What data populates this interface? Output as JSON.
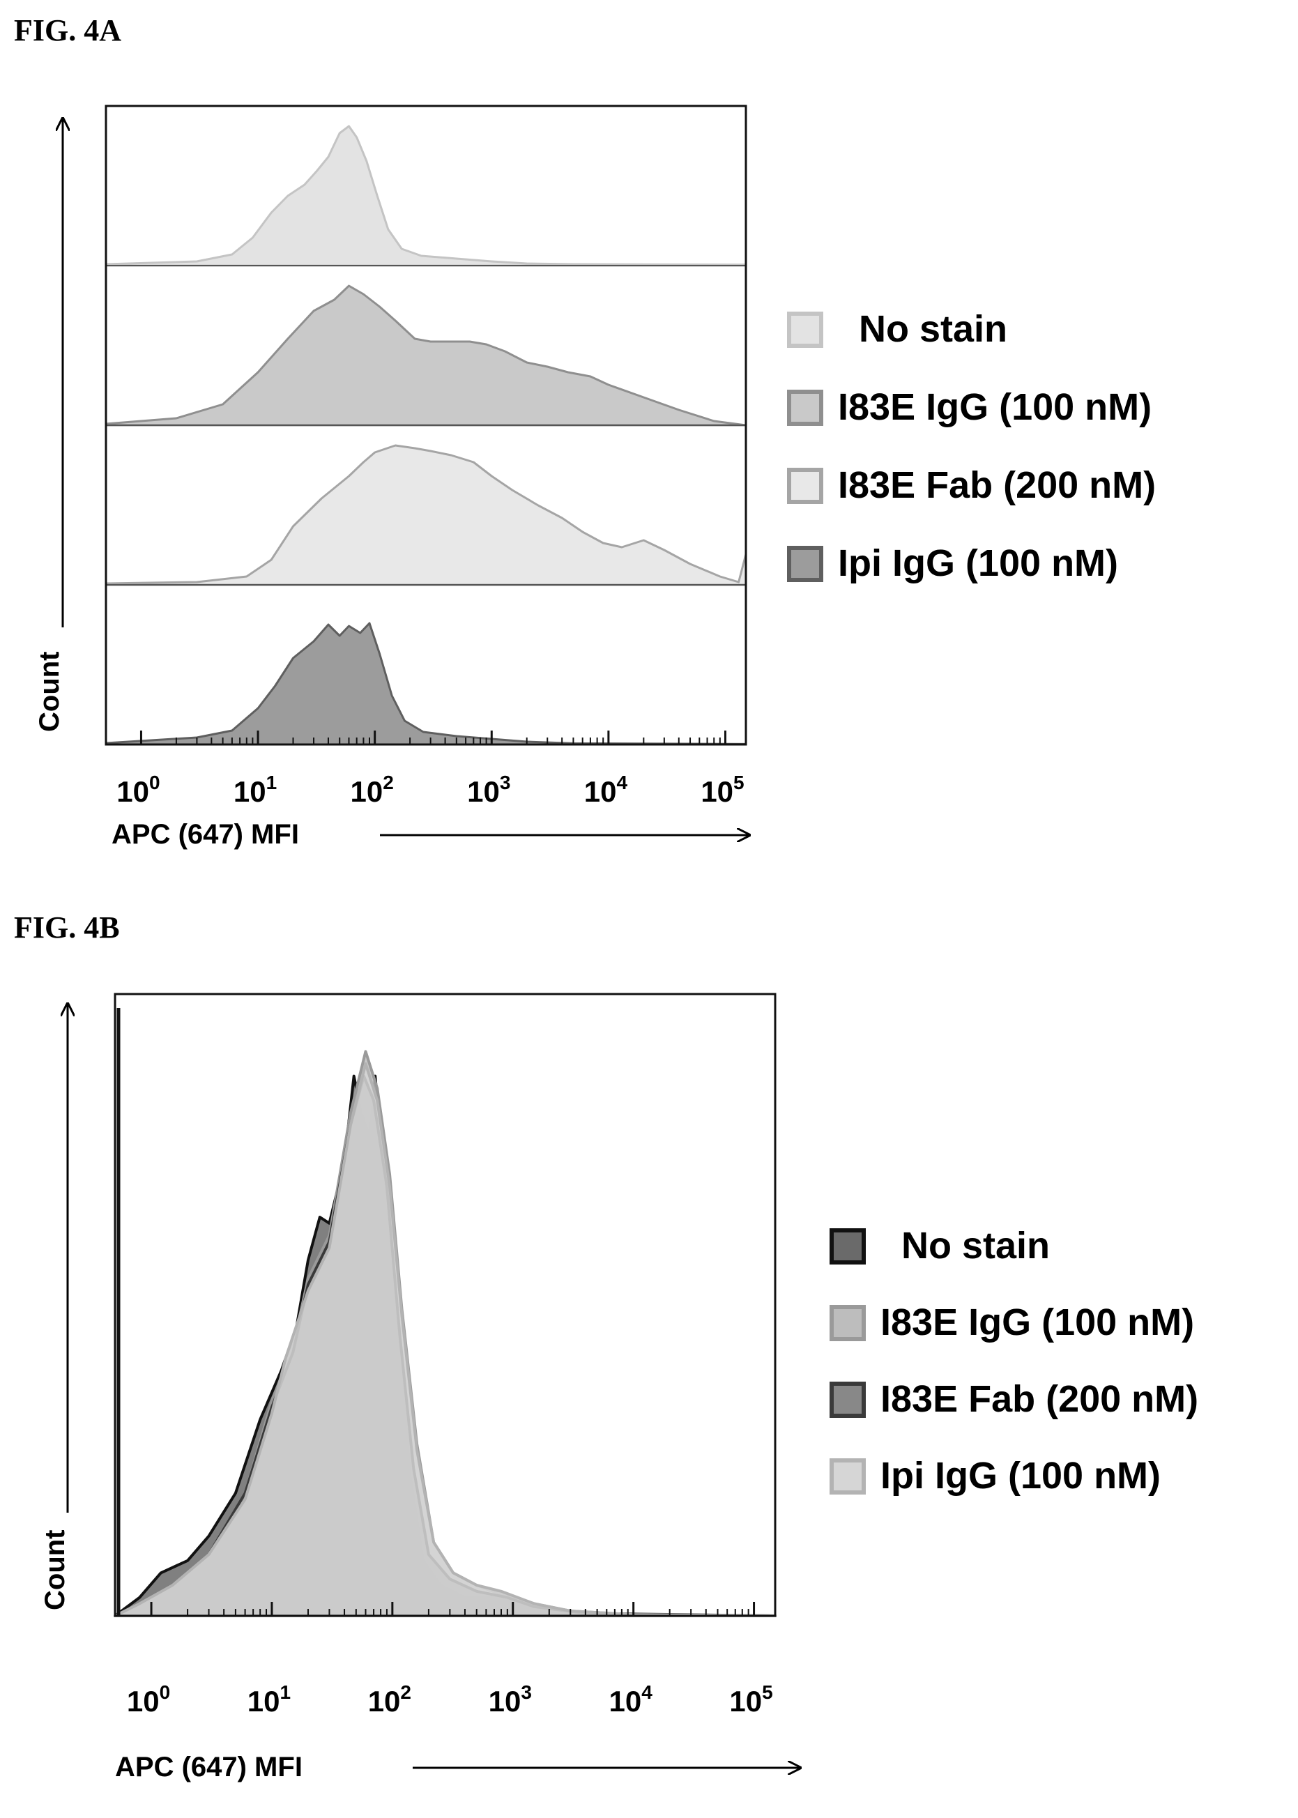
{
  "chart_data": [
    {
      "panel": "FIG. 4A",
      "type": "area",
      "layout": "stacked-offset histograms (one track per series)",
      "xscale": "log",
      "xlim": [
        0.5,
        150000
      ],
      "x_ticks": [
        {
          "base": "10",
          "exp": "0"
        },
        {
          "base": "10",
          "exp": "1"
        },
        {
          "base": "10",
          "exp": "2"
        },
        {
          "base": "10",
          "exp": "3"
        },
        {
          "base": "10",
          "exp": "4"
        },
        {
          "base": "10",
          "exp": "5"
        }
      ],
      "xlabel": "APC (647) MFI",
      "ylabel": "Count",
      "grid": false,
      "legend_position": "right",
      "legend": [
        "No stain",
        "I83E IgG (100 nM)",
        "I83E Fab (200 nM)",
        "Ipi IgG (100 nM)"
      ],
      "series": [
        {
          "name": "No stain",
          "fill": "#e3e3e3",
          "stroke": "#c4c4c4",
          "track": 0,
          "points": [
            [
              0.5,
              0.01
            ],
            [
              3,
              0.03
            ],
            [
              6,
              0.08
            ],
            [
              9,
              0.2
            ],
            [
              13,
              0.38
            ],
            [
              18,
              0.5
            ],
            [
              25,
              0.58
            ],
            [
              32,
              0.68
            ],
            [
              40,
              0.78
            ],
            [
              50,
              0.95
            ],
            [
              60,
              1.0
            ],
            [
              70,
              0.92
            ],
            [
              85,
              0.75
            ],
            [
              105,
              0.5
            ],
            [
              130,
              0.26
            ],
            [
              170,
              0.12
            ],
            [
              250,
              0.07
            ],
            [
              500,
              0.05
            ],
            [
              1000,
              0.03
            ],
            [
              2000,
              0.015
            ],
            [
              5000,
              0.01
            ],
            [
              20000,
              0.008
            ],
            [
              150000,
              0.006
            ]
          ]
        },
        {
          "name": "I83E IgG (100 nM)",
          "fill": "#c9c9c9",
          "stroke": "#8f8f8f",
          "track": 1,
          "points": [
            [
              0.5,
              0.01
            ],
            [
              2,
              0.05
            ],
            [
              5,
              0.15
            ],
            [
              10,
              0.38
            ],
            [
              18,
              0.62
            ],
            [
              30,
              0.82
            ],
            [
              45,
              0.9
            ],
            [
              60,
              1.0
            ],
            [
              80,
              0.94
            ],
            [
              110,
              0.85
            ],
            [
              150,
              0.75
            ],
            [
              220,
              0.62
            ],
            [
              300,
              0.6
            ],
            [
              450,
              0.6
            ],
            [
              650,
              0.6
            ],
            [
              900,
              0.58
            ],
            [
              1300,
              0.53
            ],
            [
              2000,
              0.45
            ],
            [
              3000,
              0.42
            ],
            [
              4500,
              0.38
            ],
            [
              7000,
              0.35
            ],
            [
              10000,
              0.29
            ],
            [
              20000,
              0.2
            ],
            [
              40000,
              0.11
            ],
            [
              80000,
              0.03
            ],
            [
              150000,
              0.0
            ]
          ]
        },
        {
          "name": "I83E Fab (200 nM)",
          "fill": "#e8e8e8",
          "stroke": "#a5a5a5",
          "track": 2,
          "points": [
            [
              0.5,
              0.01
            ],
            [
              3,
              0.02
            ],
            [
              8,
              0.06
            ],
            [
              13,
              0.18
            ],
            [
              20,
              0.42
            ],
            [
              35,
              0.62
            ],
            [
              60,
              0.78
            ],
            [
              80,
              0.88
            ],
            [
              100,
              0.95
            ],
            [
              150,
              1.0
            ],
            [
              220,
              0.98
            ],
            [
              300,
              0.96
            ],
            [
              450,
              0.93
            ],
            [
              700,
              0.88
            ],
            [
              1000,
              0.78
            ],
            [
              1500,
              0.68
            ],
            [
              2500,
              0.57
            ],
            [
              4000,
              0.48
            ],
            [
              6000,
              0.38
            ],
            [
              9000,
              0.3
            ],
            [
              13000,
              0.27
            ],
            [
              20000,
              0.32
            ],
            [
              30000,
              0.25
            ],
            [
              50000,
              0.15
            ],
            [
              90000,
              0.06
            ],
            [
              130000,
              0.02
            ],
            [
              150000,
              0.22
            ]
          ]
        },
        {
          "name": "Ipi IgG (100 nM)",
          "fill": "#9c9c9c",
          "stroke": "#5f5f5f",
          "track": 3,
          "points": [
            [
              0.5,
              0.01
            ],
            [
              3,
              0.05
            ],
            [
              6,
              0.1
            ],
            [
              10,
              0.26
            ],
            [
              14,
              0.42
            ],
            [
              20,
              0.62
            ],
            [
              30,
              0.74
            ],
            [
              40,
              0.86
            ],
            [
              50,
              0.78
            ],
            [
              60,
              0.85
            ],
            [
              75,
              0.8
            ],
            [
              90,
              0.87
            ],
            [
              110,
              0.65
            ],
            [
              140,
              0.35
            ],
            [
              180,
              0.17
            ],
            [
              260,
              0.09
            ],
            [
              500,
              0.06
            ],
            [
              1000,
              0.04
            ],
            [
              2000,
              0.02
            ],
            [
              5000,
              0.008
            ],
            [
              150000,
              0.003
            ]
          ]
        }
      ]
    },
    {
      "panel": "FIG. 4B",
      "type": "area",
      "layout": "overlaid histograms",
      "xscale": "log",
      "xlim": [
        0.5,
        150000
      ],
      "x_ticks": [
        {
          "base": "10",
          "exp": "0"
        },
        {
          "base": "10",
          "exp": "1"
        },
        {
          "base": "10",
          "exp": "2"
        },
        {
          "base": "10",
          "exp": "3"
        },
        {
          "base": "10",
          "exp": "4"
        },
        {
          "base": "10",
          "exp": "5"
        }
      ],
      "xlabel": "APC (647) MFI",
      "ylabel": "Count",
      "grid": false,
      "legend_position": "right",
      "legend": [
        "No stain",
        "I83E IgG (100 nM)",
        "I83E Fab (200 nM)",
        "Ipi IgG (100 nM)"
      ],
      "series": [
        {
          "name": "No stain",
          "fill": "#6a6a6a",
          "stroke": "#111111",
          "points": [
            [
              0.5,
              0.0
            ],
            [
              0.8,
              0.03
            ],
            [
              1.2,
              0.07
            ],
            [
              2,
              0.09
            ],
            [
              3,
              0.13
            ],
            [
              5,
              0.2
            ],
            [
              8,
              0.32
            ],
            [
              12,
              0.4
            ],
            [
              16,
              0.47
            ],
            [
              20,
              0.58
            ],
            [
              25,
              0.65
            ],
            [
              30,
              0.64
            ],
            [
              40,
              0.74
            ],
            [
              48,
              0.88
            ],
            [
              55,
              0.82
            ],
            [
              65,
              0.78
            ],
            [
              72,
              0.88
            ],
            [
              85,
              0.72
            ],
            [
              110,
              0.48
            ],
            [
              140,
              0.23
            ],
            [
              180,
              0.09
            ],
            [
              250,
              0.05
            ],
            [
              400,
              0.03
            ],
            [
              800,
              0.03
            ],
            [
              1500,
              0.015
            ],
            [
              3000,
              0.006
            ],
            [
              8000,
              0.002
            ],
            [
              150000,
              0.0
            ]
          ]
        },
        {
          "name": "I83E IgG (100 nM)",
          "fill": "#bdbdbd",
          "stroke": "#9a9a9a",
          "points": [
            [
              0.5,
              0.0
            ],
            [
              0.8,
              0.02
            ],
            [
              1.5,
              0.05
            ],
            [
              3,
              0.1
            ],
            [
              6,
              0.2
            ],
            [
              10,
              0.35
            ],
            [
              15,
              0.44
            ],
            [
              20,
              0.55
            ],
            [
              30,
              0.62
            ],
            [
              45,
              0.82
            ],
            [
              60,
              0.92
            ],
            [
              75,
              0.86
            ],
            [
              95,
              0.72
            ],
            [
              120,
              0.5
            ],
            [
              160,
              0.28
            ],
            [
              220,
              0.12
            ],
            [
              320,
              0.07
            ],
            [
              500,
              0.05
            ],
            [
              800,
              0.035
            ],
            [
              1500,
              0.02
            ],
            [
              3000,
              0.008
            ],
            [
              10000,
              0.002
            ],
            [
              150000,
              0.0
            ]
          ]
        },
        {
          "name": "I83E Fab (200 nM)",
          "fill": "#888888",
          "stroke": "#3a3a3a",
          "points": [
            [
              0.5,
              0.0
            ],
            [
              0.8,
              0.02
            ],
            [
              1.5,
              0.05
            ],
            [
              3,
              0.1
            ],
            [
              6,
              0.2
            ],
            [
              10,
              0.34
            ],
            [
              15,
              0.43
            ],
            [
              20,
              0.54
            ],
            [
              30,
              0.61
            ],
            [
              45,
              0.8
            ],
            [
              58,
              0.88
            ],
            [
              70,
              0.84
            ],
            [
              90,
              0.7
            ],
            [
              115,
              0.46
            ],
            [
              150,
              0.24
            ],
            [
              200,
              0.1
            ],
            [
              300,
              0.06
            ],
            [
              500,
              0.04
            ],
            [
              900,
              0.03
            ],
            [
              1500,
              0.015
            ],
            [
              4000,
              0.004
            ],
            [
              150000,
              0.0
            ]
          ]
        },
        {
          "name": "Ipi IgG (100 nM)",
          "fill": "#d6d6d6",
          "stroke": "#b3b3b3",
          "points": [
            [
              0.5,
              0.0
            ],
            [
              0.8,
              0.02
            ],
            [
              1.5,
              0.05
            ],
            [
              3,
              0.1
            ],
            [
              6,
              0.19
            ],
            [
              10,
              0.33
            ],
            [
              13,
              0.42
            ],
            [
              20,
              0.53
            ],
            [
              30,
              0.6
            ],
            [
              45,
              0.8
            ],
            [
              60,
              0.9
            ],
            [
              75,
              0.84
            ],
            [
              95,
              0.7
            ],
            [
              120,
              0.49
            ],
            [
              160,
              0.27
            ],
            [
              220,
              0.12
            ],
            [
              320,
              0.07
            ],
            [
              500,
              0.05
            ],
            [
              800,
              0.04
            ],
            [
              1500,
              0.02
            ],
            [
              3000,
              0.008
            ],
            [
              10000,
              0.002
            ],
            [
              150000,
              0.0
            ]
          ]
        }
      ]
    }
  ],
  "figure_a": {
    "label": "FIG. 4A"
  },
  "figure_b": {
    "label": "FIG. 4B"
  }
}
